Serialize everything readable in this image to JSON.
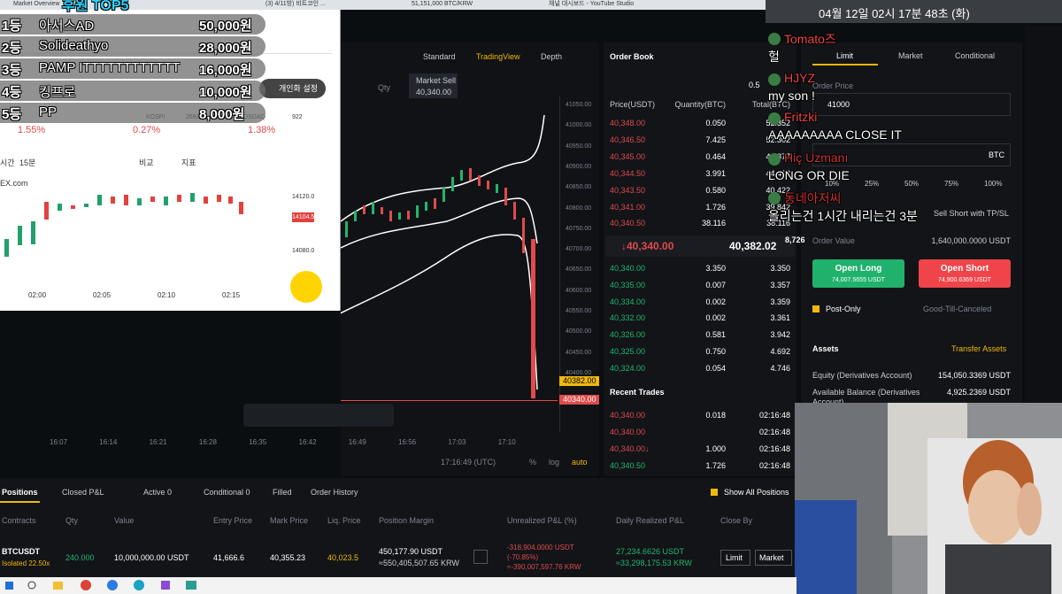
{
  "browser": {
    "tabs": [
      "Market Overview",
      "(3) 4/11방) 비트코인 ...",
      "51,151,000 BTC/KRW",
      "채널 대시보드 - YouTube Studio"
    ]
  },
  "clock": "04월 12일 02시 17분 48초 (화)",
  "donations": {
    "title": "후원 TOP5",
    "rows": [
      [
        "1등",
        "아서스AD",
        "50,000원"
      ],
      [
        "2등",
        "Solideathyo",
        "28,000원"
      ],
      [
        "3등",
        "PAMP ITTTTTTTTTTTT",
        "16,000원"
      ],
      [
        "4등",
        "킹프로",
        "10,000원"
      ],
      [
        "5등",
        "PP",
        "8,000원"
      ]
    ]
  },
  "popup": {
    "settings": "개인화 설정",
    "indices": [
      [
        "KOSPI",
        "2693.1",
        "1.55%"
      ],
      [
        "",
        "",
        "0.27%"
      ],
      [
        "KOSDAQ",
        "922",
        "1.38%"
      ]
    ],
    "toolbar": [
      "시간",
      "15분",
      "비교",
      "지표"
    ],
    "site": "EX.com",
    "price_ticks": [
      "14120.0",
      "14104.5",
      "14080.0"
    ],
    "time_ticks": [
      "02:00",
      "02:05",
      "02:10",
      "02:15"
    ]
  },
  "chart": {
    "views": [
      "Standard",
      "TradingView",
      "Depth"
    ],
    "qty": "Qty",
    "market_sell": "Market Sell",
    "market_sell_price": "40,340.00",
    "price_axis": [
      "41050.00",
      "41000.00",
      "40950.00",
      "40900.00",
      "40850.00",
      "40800.00",
      "40750.00",
      "40700.00",
      "40650.00",
      "40600.00",
      "40550.00",
      "40500.00",
      "40450.00",
      "40400.00"
    ],
    "mark_price": "40382.00",
    "last_price": "40340.00",
    "time_axis": [
      "16:07",
      "16:14",
      "16:21",
      "16:28",
      "16:35",
      "16:42",
      "16:49",
      "16:56",
      "17:03",
      "17:10"
    ],
    "clock": "17:16:49 (UTC)",
    "scale_options": [
      "%",
      "log",
      "auto"
    ]
  },
  "order_book": {
    "title": "Order Book",
    "step": "0.5",
    "headers": [
      "Price(USDT)",
      "Quantity(BTC)",
      "Total(BTC)"
    ],
    "asks": [
      [
        "40,348.00",
        "0.050",
        "52.352"
      ],
      [
        "40,346.50",
        "7.425",
        "52.302"
      ],
      [
        "40,345.00",
        "0.464",
        "44.877"
      ],
      [
        "40,344.50",
        "3.991",
        "44.413"
      ],
      [
        "40,343.50",
        "0.580",
        "40.422"
      ],
      [
        "40,341.00",
        "1.726",
        "39.842"
      ],
      [
        "40,340.50",
        "38.116",
        "38.116"
      ]
    ],
    "last": "↓40,340.00",
    "mark": "40,382.02",
    "bids": [
      [
        "40,340.00",
        "3.350",
        "3.350"
      ],
      [
        "40,335.00",
        "0.007",
        "3.357"
      ],
      [
        "40,334.00",
        "0.002",
        "3.359"
      ],
      [
        "40,332.00",
        "0.002",
        "3.361"
      ],
      [
        "40,326.00",
        "0.581",
        "3.942"
      ],
      [
        "40,325.00",
        "0.750",
        "4.692"
      ],
      [
        "40,324.00",
        "0.054",
        "4.746"
      ]
    ],
    "overlay_number": "8,726"
  },
  "recent_trades": {
    "title": "Recent Trades",
    "rows": [
      {
        "price": "40,340.00",
        "qty": "0.018",
        "time": "02:16:48"
      },
      {
        "price": "40,340.00",
        "time": "02:16:48"
      },
      {
        "price": "40,340.00↓",
        "qty": "1.000",
        "time": "02:16:48"
      },
      {
        "price": "40,340.50",
        "qty": "1.726",
        "time": "02:16:48"
      }
    ]
  },
  "order_form": {
    "tabs": [
      "Limit",
      "Market",
      "Conditional"
    ],
    "order_price_label": "Order Price",
    "order_price": "41000",
    "qty_unit": "BTC",
    "percents": [
      "10%",
      "25%",
      "50%",
      "75%",
      "100%"
    ],
    "tp_sl": "Sell Short with TP/SL",
    "order_value_label": "Order Value",
    "order_value": "1,640,000.0000 USDT",
    "open_long": "Open Long",
    "open_long_cost": "74,007.5655 USDT",
    "open_short": "Open Short",
    "open_short_cost": "74,900.6369 USDT",
    "post_only": "Post-Only",
    "time_in_force": "Good-Till-Canceled",
    "assets": "Assets",
    "transfer": "Transfer Assets",
    "equity_label": "Equity (Derivatives Account)",
    "equity": "154,050.3369 USDT",
    "available_label": "Available Balance (Derivatives Account)",
    "available": "4,925.2369 USDT"
  },
  "chat": [
    {
      "name": "Tomato즈",
      "message": "헐"
    },
    {
      "name": "HJYZ",
      "message": "my son !"
    },
    {
      "name": "Fritzki",
      "message": "AAAAAAAAA CLOSE IT"
    },
    {
      "name": "Hiç Uzmanı",
      "message": "LONG OR DIE"
    },
    {
      "name": "동네아저씨",
      "message": "올리는건 1시간 내리는건 3분"
    }
  ],
  "positions": {
    "tabs": [
      "Positions",
      "Closed P&L",
      "Active 0",
      "Conditional 0",
      "Filled",
      "Order History"
    ],
    "show_all": "Show All Positions",
    "headers": [
      "Contracts",
      "Qty",
      "Value",
      "Entry Price",
      "Mark Price",
      "Liq. Price",
      "Position Margin",
      "Unrealized P&L (%)",
      "Daily Realized P&L",
      "Close By"
    ],
    "row": {
      "symbol": "BTCUSDT",
      "leverage": "Isolated 22.50x",
      "qty": "240.000",
      "value": "10,000,000.00 USDT",
      "entry": "41,666.6",
      "mark": "40,355.23",
      "liq": "40,023.5",
      "margin": "450,177.90 USDT",
      "margin_krw": "≈550,405,507.65 KRW",
      "pnl": "-318,904.0000 USDT",
      "pnl_pct": "(-70.85%)",
      "pnl_krw": "≈-390,007,597.76 KRW",
      "realized": "27,234.6626 USDT",
      "realized_krw": "≈33,298,175.53 KRW",
      "close_limit": "Limit",
      "close_market": "Market"
    }
  }
}
